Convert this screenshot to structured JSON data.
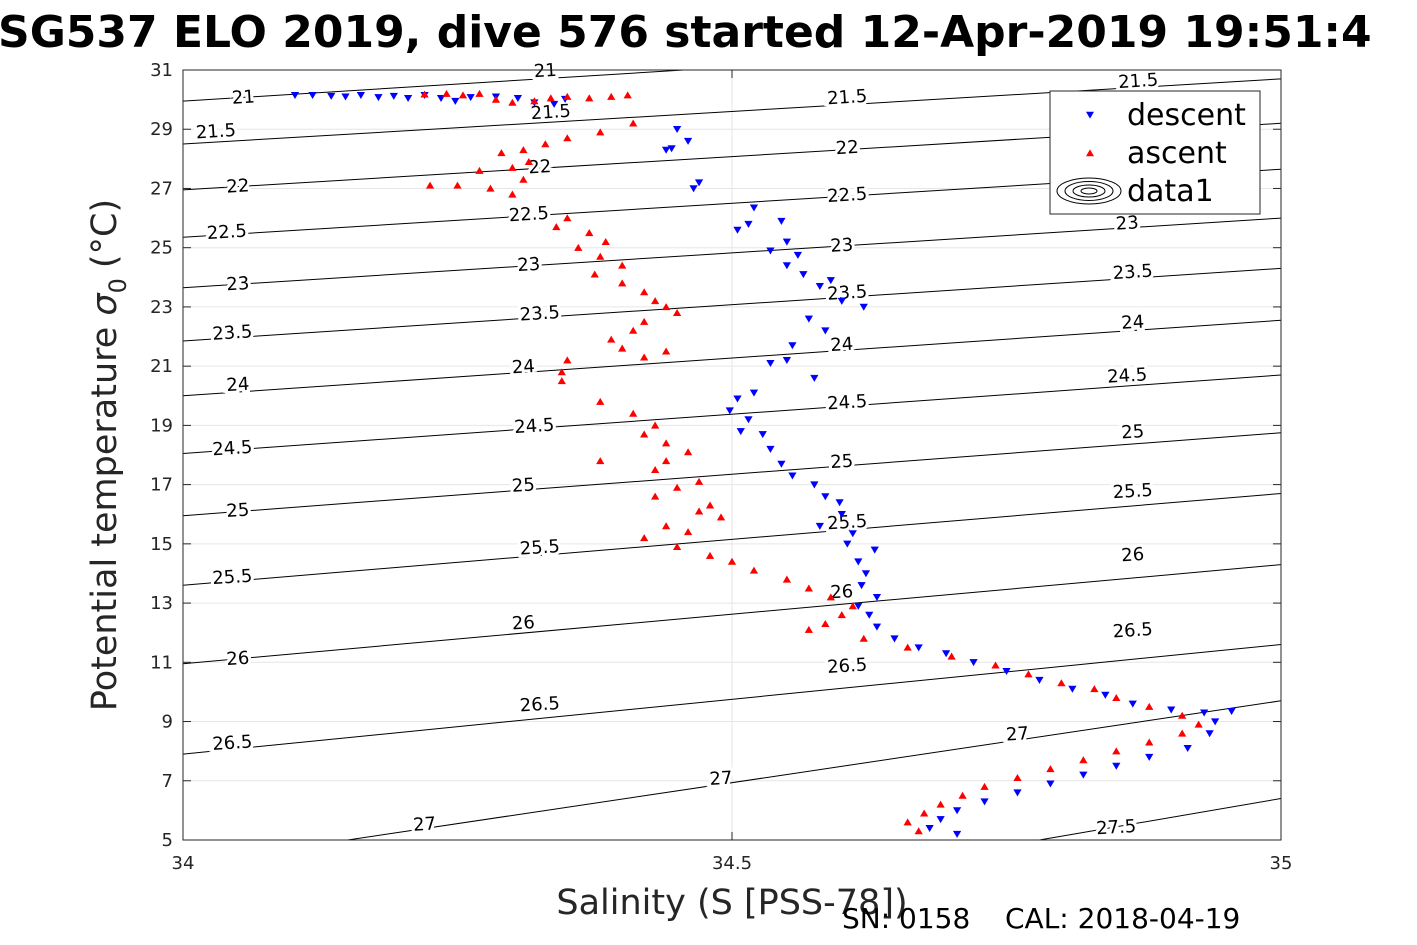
{
  "chart_data": {
    "type": "scatter",
    "title": "SG537 ELO 2019, dive 576 started 12-Apr-2019 19:51:4",
    "xlabel": "Salinity (S [PSS-78])",
    "ylabel": "Potential temperature",
    "ylabel_symbol": "σ",
    "ylabel_subscript": "0",
    "ylabel_unit": "(°C)",
    "xlim": [
      34,
      35
    ],
    "ylim": [
      5,
      31
    ],
    "xticks": [
      34,
      34.5,
      35
    ],
    "xtick_labels": [
      "34",
      "34.5",
      "35"
    ],
    "yticks": [
      5,
      7,
      9,
      11,
      13,
      15,
      17,
      19,
      21,
      23,
      25,
      27,
      29,
      31
    ],
    "ytick_labels": [
      "5",
      "7",
      "9",
      "11",
      "13",
      "15",
      "17",
      "19",
      "21",
      "23",
      "25",
      "27",
      "29",
      "31"
    ],
    "grid": true,
    "legend_position": "top-right",
    "legend": [
      {
        "name": "descent",
        "marker": "triangle-down",
        "color": "#0000ff"
      },
      {
        "name": "ascent",
        "marker": "triangle-up",
        "color": "#ff0000"
      },
      {
        "name": "data1",
        "marker": "contour",
        "color": "#000000"
      }
    ],
    "series": [
      {
        "name": "descent",
        "color": "#0000ff",
        "points": [
          [
            34.102,
            30.15
          ],
          [
            34.118,
            30.15
          ],
          [
            34.135,
            30.12
          ],
          [
            34.148,
            30.1
          ],
          [
            34.162,
            30.15
          ],
          [
            34.178,
            30.08
          ],
          [
            34.192,
            30.12
          ],
          [
            34.205,
            30.05
          ],
          [
            34.22,
            30.15
          ],
          [
            34.235,
            30.05
          ],
          [
            34.248,
            29.95
          ],
          [
            34.262,
            30.08
          ],
          [
            34.285,
            30.1
          ],
          [
            34.305,
            30.05
          ],
          [
            34.32,
            29.9
          ],
          [
            34.338,
            29.85
          ],
          [
            34.348,
            30.02
          ],
          [
            34.45,
            29.0
          ],
          [
            34.46,
            28.6
          ],
          [
            34.445,
            28.35
          ],
          [
            34.44,
            28.3
          ],
          [
            34.47,
            27.2
          ],
          [
            34.465,
            27.0
          ],
          [
            34.52,
            26.35
          ],
          [
            34.515,
            25.8
          ],
          [
            34.505,
            25.6
          ],
          [
            34.545,
            25.9
          ],
          [
            34.55,
            25.2
          ],
          [
            34.535,
            24.9
          ],
          [
            34.56,
            24.75
          ],
          [
            34.55,
            24.4
          ],
          [
            34.565,
            24.1
          ],
          [
            34.59,
            23.9
          ],
          [
            34.58,
            23.7
          ],
          [
            34.6,
            23.2
          ],
          [
            34.62,
            23.0
          ],
          [
            34.57,
            22.6
          ],
          [
            34.585,
            22.2
          ],
          [
            34.555,
            21.7
          ],
          [
            34.535,
            21.1
          ],
          [
            34.55,
            21.2
          ],
          [
            34.575,
            20.6
          ],
          [
            34.52,
            20.1
          ],
          [
            34.505,
            19.9
          ],
          [
            34.498,
            19.5
          ],
          [
            34.515,
            19.2
          ],
          [
            34.508,
            18.8
          ],
          [
            34.528,
            18.7
          ],
          [
            34.535,
            18.2
          ],
          [
            34.545,
            17.7
          ],
          [
            34.555,
            17.3
          ],
          [
            34.575,
            17.0
          ],
          [
            34.585,
            16.6
          ],
          [
            34.598,
            16.4
          ],
          [
            34.6,
            16.0
          ],
          [
            34.58,
            15.6
          ],
          [
            34.61,
            15.35
          ],
          [
            34.605,
            15.0
          ],
          [
            34.63,
            14.8
          ],
          [
            34.615,
            14.4
          ],
          [
            34.622,
            14.0
          ],
          [
            34.618,
            13.6
          ],
          [
            34.632,
            13.2
          ],
          [
            34.615,
            12.9
          ],
          [
            34.625,
            12.6
          ],
          [
            34.632,
            12.2
          ],
          [
            34.648,
            11.8
          ],
          [
            34.67,
            11.5
          ],
          [
            34.695,
            11.3
          ],
          [
            34.72,
            11.0
          ],
          [
            34.75,
            10.7
          ],
          [
            34.78,
            10.4
          ],
          [
            34.81,
            10.1
          ],
          [
            34.84,
            9.9
          ],
          [
            34.865,
            9.6
          ],
          [
            34.9,
            9.4
          ],
          [
            34.93,
            9.3
          ],
          [
            34.955,
            9.35
          ],
          [
            34.94,
            9.0
          ],
          [
            34.935,
            8.6
          ],
          [
            34.915,
            8.1
          ],
          [
            34.88,
            7.8
          ],
          [
            34.85,
            7.5
          ],
          [
            34.82,
            7.2
          ],
          [
            34.79,
            6.9
          ],
          [
            34.76,
            6.6
          ],
          [
            34.73,
            6.3
          ],
          [
            34.705,
            6.0
          ],
          [
            34.69,
            5.7
          ],
          [
            34.68,
            5.4
          ],
          [
            34.705,
            5.2
          ]
        ]
      },
      {
        "name": "ascent",
        "color": "#ff0000",
        "points": [
          [
            34.22,
            30.18
          ],
          [
            34.24,
            30.2
          ],
          [
            34.255,
            30.15
          ],
          [
            34.27,
            30.2
          ],
          [
            34.285,
            30.0
          ],
          [
            34.3,
            29.9
          ],
          [
            34.32,
            29.95
          ],
          [
            34.335,
            30.05
          ],
          [
            34.35,
            30.1
          ],
          [
            34.37,
            30.05
          ],
          [
            34.39,
            30.1
          ],
          [
            34.405,
            30.15
          ],
          [
            34.41,
            29.2
          ],
          [
            34.38,
            28.9
          ],
          [
            34.35,
            28.7
          ],
          [
            34.33,
            28.5
          ],
          [
            34.31,
            28.3
          ],
          [
            34.29,
            28.2
          ],
          [
            34.315,
            27.9
          ],
          [
            34.3,
            27.7
          ],
          [
            34.27,
            27.6
          ],
          [
            34.31,
            27.3
          ],
          [
            34.25,
            27.1
          ],
          [
            34.225,
            27.1
          ],
          [
            34.28,
            27.0
          ],
          [
            34.3,
            26.8
          ],
          [
            34.35,
            26.0
          ],
          [
            34.34,
            25.7
          ],
          [
            34.37,
            25.5
          ],
          [
            34.385,
            25.2
          ],
          [
            34.36,
            25.0
          ],
          [
            34.38,
            24.7
          ],
          [
            34.4,
            24.4
          ],
          [
            34.375,
            24.1
          ],
          [
            34.4,
            23.8
          ],
          [
            34.42,
            23.5
          ],
          [
            34.43,
            23.2
          ],
          [
            34.44,
            23.0
          ],
          [
            34.45,
            22.8
          ],
          [
            34.42,
            22.5
          ],
          [
            34.41,
            22.2
          ],
          [
            34.39,
            21.9
          ],
          [
            34.4,
            21.6
          ],
          [
            34.42,
            21.3
          ],
          [
            34.44,
            21.5
          ],
          [
            34.35,
            21.2
          ],
          [
            34.345,
            20.8
          ],
          [
            34.345,
            20.5
          ],
          [
            34.38,
            19.8
          ],
          [
            34.41,
            19.4
          ],
          [
            34.43,
            19.0
          ],
          [
            34.42,
            18.7
          ],
          [
            34.44,
            18.4
          ],
          [
            34.46,
            18.1
          ],
          [
            34.44,
            17.8
          ],
          [
            34.38,
            17.8
          ],
          [
            34.43,
            17.5
          ],
          [
            34.47,
            17.1
          ],
          [
            34.45,
            16.9
          ],
          [
            34.43,
            16.6
          ],
          [
            34.48,
            16.3
          ],
          [
            34.47,
            16.1
          ],
          [
            34.49,
            15.9
          ],
          [
            34.44,
            15.6
          ],
          [
            34.46,
            15.4
          ],
          [
            34.42,
            15.2
          ],
          [
            34.45,
            14.9
          ],
          [
            34.48,
            14.6
          ],
          [
            34.5,
            14.4
          ],
          [
            34.52,
            14.1
          ],
          [
            34.55,
            13.8
          ],
          [
            34.57,
            13.5
          ],
          [
            34.59,
            13.2
          ],
          [
            34.61,
            12.9
          ],
          [
            34.6,
            12.6
          ],
          [
            34.585,
            12.3
          ],
          [
            34.57,
            12.1
          ],
          [
            34.62,
            11.8
          ],
          [
            34.66,
            11.5
          ],
          [
            34.7,
            11.2
          ],
          [
            34.74,
            10.9
          ],
          [
            34.77,
            10.6
          ],
          [
            34.8,
            10.3
          ],
          [
            34.83,
            10.1
          ],
          [
            34.85,
            9.8
          ],
          [
            34.88,
            9.5
          ],
          [
            34.91,
            9.2
          ],
          [
            34.925,
            8.9
          ],
          [
            34.91,
            8.6
          ],
          [
            34.88,
            8.3
          ],
          [
            34.85,
            8.0
          ],
          [
            34.82,
            7.7
          ],
          [
            34.79,
            7.4
          ],
          [
            34.76,
            7.1
          ],
          [
            34.73,
            6.8
          ],
          [
            34.71,
            6.5
          ],
          [
            34.69,
            6.2
          ],
          [
            34.675,
            5.9
          ],
          [
            34.66,
            5.6
          ],
          [
            34.67,
            5.3
          ]
        ]
      }
    ],
    "contours": [
      {
        "label": "21",
        "points": [
          [
            34.0,
            29.95
          ],
          [
            34.5,
            31.1
          ]
        ]
      },
      {
        "label": "21.5",
        "points": [
          [
            34.0,
            28.5
          ],
          [
            35.0,
            30.7
          ]
        ]
      },
      {
        "label": "22",
        "points": [
          [
            34.0,
            26.95
          ],
          [
            35.0,
            29.2
          ]
        ]
      },
      {
        "label": "22.5",
        "points": [
          [
            34.0,
            25.35
          ],
          [
            35.0,
            27.65
          ]
        ]
      },
      {
        "label": "23",
        "points": [
          [
            34.0,
            23.65
          ],
          [
            35.0,
            26.0
          ]
        ]
      },
      {
        "label": "23.5",
        "points": [
          [
            34.0,
            21.85
          ],
          [
            35.0,
            24.3
          ]
        ]
      },
      {
        "label": "24",
        "points": [
          [
            34.0,
            20.0
          ],
          [
            35.0,
            22.55
          ]
        ]
      },
      {
        "label": "24.5",
        "points": [
          [
            34.0,
            18.05
          ],
          [
            35.0,
            20.7
          ]
        ]
      },
      {
        "label": "25",
        "points": [
          [
            34.0,
            15.95
          ],
          [
            35.0,
            18.75
          ]
        ]
      },
      {
        "label": "25.5",
        "points": [
          [
            34.0,
            13.6
          ],
          [
            35.0,
            16.7
          ]
        ]
      },
      {
        "label": "26",
        "points": [
          [
            34.0,
            10.95
          ],
          [
            35.0,
            14.3
          ]
        ]
      },
      {
        "label": "26.5",
        "points": [
          [
            34.0,
            7.9
          ],
          [
            35.0,
            11.6
          ]
        ]
      },
      {
        "label": "27",
        "points": [
          [
            34.15,
            5.0
          ],
          [
            35.0,
            9.7
          ]
        ]
      },
      {
        "label": "27.5",
        "points": [
          [
            34.78,
            5.0
          ],
          [
            35.0,
            6.4
          ]
        ]
      }
    ],
    "contour_labels": [
      {
        "text": "21",
        "x": 34.055,
        "y": 30.05
      },
      {
        "text": "21",
        "x": 34.33,
        "y": 30.95
      },
      {
        "text": "21.5",
        "x": 34.03,
        "y": 28.9
      },
      {
        "text": "21.5",
        "x": 34.335,
        "y": 29.55
      },
      {
        "text": "21.5",
        "x": 34.605,
        "y": 30.05
      },
      {
        "text": "21.5",
        "x": 34.87,
        "y": 30.6
      },
      {
        "text": "22",
        "x": 34.05,
        "y": 27.05
      },
      {
        "text": "22",
        "x": 34.325,
        "y": 27.7
      },
      {
        "text": "22",
        "x": 34.605,
        "y": 28.35
      },
      {
        "text": "22.5",
        "x": 34.04,
        "y": 25.5
      },
      {
        "text": "22.5",
        "x": 34.315,
        "y": 26.1
      },
      {
        "text": "22.5",
        "x": 34.605,
        "y": 26.75
      },
      {
        "text": "23",
        "x": 34.05,
        "y": 23.75
      },
      {
        "text": "23",
        "x": 34.315,
        "y": 24.4
      },
      {
        "text": "23",
        "x": 34.6,
        "y": 25.05
      },
      {
        "text": "23",
        "x": 34.86,
        "y": 25.8
      },
      {
        "text": "23.5",
        "x": 34.045,
        "y": 22.1
      },
      {
        "text": "23.5",
        "x": 34.325,
        "y": 22.75
      },
      {
        "text": "23.5",
        "x": 34.605,
        "y": 23.45
      },
      {
        "text": "23.5",
        "x": 34.865,
        "y": 24.15
      },
      {
        "text": "24",
        "x": 34.05,
        "y": 20.35
      },
      {
        "text": "24",
        "x": 34.31,
        "y": 20.95
      },
      {
        "text": "24",
        "x": 34.6,
        "y": 21.7
      },
      {
        "text": "24",
        "x": 34.865,
        "y": 22.45
      },
      {
        "text": "24.5",
        "x": 34.045,
        "y": 18.2
      },
      {
        "text": "24.5",
        "x": 34.32,
        "y": 18.95
      },
      {
        "text": "24.5",
        "x": 34.605,
        "y": 19.75
      },
      {
        "text": "24.5",
        "x": 34.86,
        "y": 20.65
      },
      {
        "text": "25",
        "x": 34.05,
        "y": 16.1
      },
      {
        "text": "25",
        "x": 34.31,
        "y": 16.95
      },
      {
        "text": "25",
        "x": 34.6,
        "y": 17.75
      },
      {
        "text": "25",
        "x": 34.865,
        "y": 18.75
      },
      {
        "text": "25.5",
        "x": 34.045,
        "y": 13.85
      },
      {
        "text": "25.5",
        "x": 34.325,
        "y": 14.85
      },
      {
        "text": "25.5",
        "x": 34.605,
        "y": 15.7
      },
      {
        "text": "25.5",
        "x": 34.865,
        "y": 16.75
      },
      {
        "text": "26",
        "x": 34.05,
        "y": 11.1
      },
      {
        "text": "26",
        "x": 34.31,
        "y": 12.3
      },
      {
        "text": "26",
        "x": 34.6,
        "y": 13.35
      },
      {
        "text": "26",
        "x": 34.865,
        "y": 14.6
      },
      {
        "text": "26.5",
        "x": 34.045,
        "y": 8.25
      },
      {
        "text": "26.5",
        "x": 34.325,
        "y": 9.55
      },
      {
        "text": "26.5",
        "x": 34.605,
        "y": 10.85
      },
      {
        "text": "26.5",
        "x": 34.865,
        "y": 12.05
      },
      {
        "text": "27",
        "x": 34.22,
        "y": 5.5
      },
      {
        "text": "27",
        "x": 34.49,
        "y": 7.05
      },
      {
        "text": "27",
        "x": 34.76,
        "y": 8.55
      },
      {
        "text": "27.5",
        "x": 34.85,
        "y": 5.4
      }
    ]
  },
  "footer": {
    "serial": "SN: 0158",
    "calibration": "CAL: 2018-04-19"
  }
}
